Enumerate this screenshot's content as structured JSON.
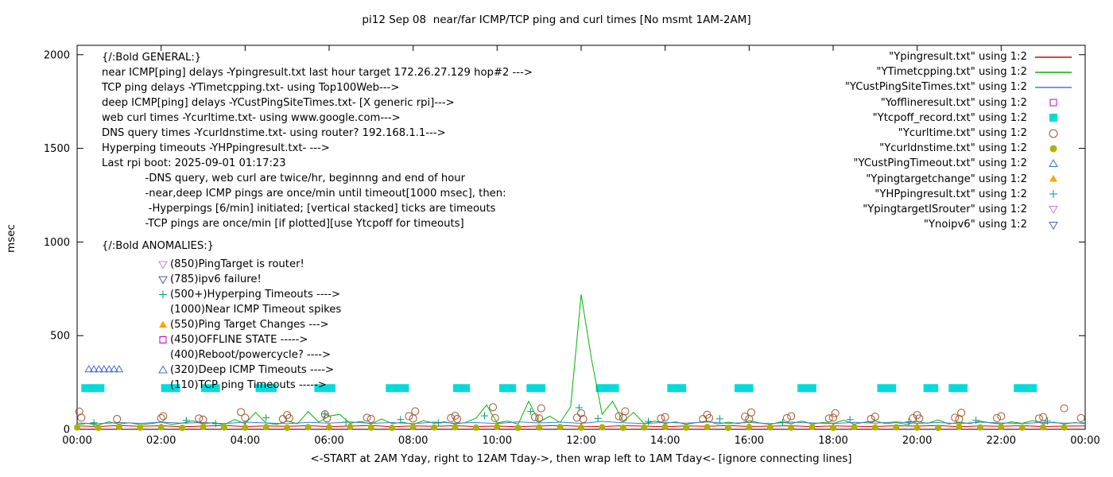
{
  "title": "pi12 Sep 08  near/far ICMP/TCP ping and curl times [No msmt 1AM-2AM]",
  "ylabel": "msec",
  "xlabel": "<-START at 2AM Yday, right to 12AM Tday->, then wrap left to 1AM Tday<- [ignore connecting lines]",
  "annotations": {
    "general": {
      "header": "{/:Bold GENERAL:}",
      "lines": [
        "near ICMP[ping] delays -Ypingresult.txt last hour target 172.26.27.129 hop#2 --->",
        "TCP ping delays -YTimetcpping.txt- using Top100Web--->",
        "deep ICMP[ping] delays -YCustPingSiteTimes.txt- [X generic rpi]--->",
        "web curl times -Ycurltime.txt- using www.google.com--->",
        "DNS query times -Ycurldnstime.txt- using router? 192.168.1.1--->",
        "Hyperping timeouts -YHPpingresult.txt- --->",
        "Last rpi boot: 2025-09-01 01:17:23",
        "             -DNS query, web curl are twice/hr, beginnng and end of hour",
        "             -near,deep ICMP pings are once/min until timeout[1000 msec], then:",
        "              -Hyperpings [6/min] initiated; [vertical stacked] ticks are timeouts",
        "             -TCP pings are once/min [if plotted][use Ytcpoff for timeouts]"
      ]
    },
    "anomalies": {
      "header": "{/:Bold ANOMALIES:}",
      "items": [
        {
          "marker": "triangle-down-open",
          "color": "#c080e0",
          "text": "(850)PingTarget is router!"
        },
        {
          "marker": "triangle-down-open",
          "color": "#4060c0",
          "text": "(785)ipv6 failure!"
        },
        {
          "marker": "plus",
          "color": "#009973",
          "text": "(500+)Hyperping Timeouts ---->"
        },
        {
          "marker": "none",
          "color": "",
          "text": "(1000)Near ICMP Timeout spikes"
        },
        {
          "marker": "triangle-up-filled",
          "color": "#ffa500",
          "text": "(550)Ping Target Changes --->"
        },
        {
          "marker": "square-open",
          "color": "#c000c0",
          "text": "(450)OFFLINE STATE ----->"
        },
        {
          "marker": "none",
          "color": "",
          "text": "(400)Reboot/powercycle? ---->"
        },
        {
          "marker": "triangle-up-open",
          "color": "#4169e1",
          "text": "(320)Deep ICMP Timeouts ---->"
        },
        {
          "marker": "none",
          "color": "",
          "text": "(110)TCP ping Timeouts ----->"
        }
      ]
    }
  },
  "chart_data": {
    "type": "line",
    "x_unit": "hours, 00:00 = 2AM yesterday",
    "x_range": [
      0,
      24
    ],
    "y_range": [
      0,
      2050
    ],
    "y_ticks": [
      0,
      500,
      1000,
      1500,
      2000
    ],
    "x_tick_hours": [
      0,
      2,
      4,
      6,
      8,
      10,
      12,
      14,
      16,
      18,
      20,
      22,
      24
    ],
    "x_tick_labels": [
      "00:00",
      "02:00",
      "04:00",
      "06:00",
      "08:00",
      "10:00",
      "12:00",
      "14:00",
      "16:00",
      "18:00",
      "20:00",
      "22:00",
      "00:00"
    ],
    "legend_position": "top-right",
    "series": [
      {
        "name": "Ypingresult.txt",
        "legend_label": "\"Ypingresult.txt\" using 1:2",
        "type": "line",
        "color": "#dd0000",
        "x_start": 0,
        "x_step": 0.5,
        "values": [
          18,
          15,
          20,
          16,
          19,
          14,
          17,
          20,
          15,
          18,
          16,
          19,
          15,
          17,
          20,
          14,
          18,
          16,
          19,
          15,
          17,
          14,
          18,
          20,
          16,
          15,
          19,
          17,
          14,
          18,
          16,
          20,
          15,
          17,
          19,
          14,
          18,
          16,
          15,
          19,
          17,
          20,
          14,
          18,
          16,
          19,
          15,
          17,
          18
        ]
      },
      {
        "name": "YTimetcpping.txt",
        "legend_label": "\"YTimetcpping.txt\" using 1:2",
        "type": "line",
        "color": "#00b400",
        "x_start": 0,
        "x_step": 0.25,
        "values": [
          25,
          32,
          22,
          40,
          28,
          35,
          24,
          30,
          38,
          26,
          33,
          45,
          28,
          36,
          24,
          52,
          30,
          90,
          34,
          26,
          44,
          30,
          95,
          38,
          70,
          80,
          32,
          42,
          28,
          55,
          30,
          38,
          26,
          46,
          32,
          40,
          28,
          36,
          60,
          130,
          34,
          44,
          28,
          150,
          40,
          70,
          36,
          120,
          720,
          370,
          80,
          150,
          42,
          90,
          30,
          44,
          32,
          40,
          26,
          36,
          44,
          28,
          38,
          30,
          46,
          34,
          26,
          40,
          30,
          44,
          28,
          36,
          32,
          48,
          28,
          38,
          44,
          30,
          36,
          26,
          42,
          32,
          50,
          28,
          38,
          30,
          44,
          34,
          28,
          40,
          32,
          46,
          30,
          38,
          28,
          36,
          30
        ]
      },
      {
        "name": "YCustPingSiteTimes.txt",
        "legend_label": "\"YCustPingSiteTimes.txt\" using 1:2",
        "type": "line",
        "color": "#3a80d2",
        "x_start": 0,
        "x_step": 0.5,
        "values": [
          34,
          30,
          36,
          32,
          38,
          33,
          36,
          31,
          38,
          34,
          30,
          37,
          33,
          39,
          32,
          36,
          30,
          38,
          33,
          36,
          31,
          40,
          34,
          38,
          32,
          42,
          35,
          31,
          37,
          33,
          39,
          32,
          36,
          30,
          38,
          34,
          31,
          37,
          33,
          39,
          32,
          36,
          30,
          38,
          34,
          31,
          37,
          33,
          35
        ]
      },
      {
        "name": "Yofflineresult.txt",
        "legend_label": "\"Yofflineresult.txt\" using 1:2",
        "type": "points",
        "marker": "square-open",
        "color": "#c000c0",
        "points": []
      },
      {
        "name": "Ytcpoff_record.txt",
        "legend_label": "\"Ytcpoff_record.txt\" using 1:2",
        "type": "bars",
        "color": "#00dcdc",
        "y": 220,
        "half_height": 21,
        "segments": [
          [
            0.1,
            0.65
          ],
          [
            2.0,
            2.45
          ],
          [
            2.95,
            3.4
          ],
          [
            4.25,
            4.75
          ],
          [
            5.65,
            6.15
          ],
          [
            7.35,
            7.9
          ],
          [
            8.95,
            9.35
          ],
          [
            10.05,
            10.45
          ],
          [
            10.7,
            11.15
          ],
          [
            12.35,
            12.9
          ],
          [
            14.05,
            14.5
          ],
          [
            15.65,
            16.1
          ],
          [
            17.15,
            17.6
          ],
          [
            19.05,
            19.5
          ],
          [
            20.15,
            20.5
          ],
          [
            20.75,
            21.2
          ],
          [
            22.3,
            22.85
          ]
        ]
      },
      {
        "name": "Ycurltime.txt",
        "legend_label": "\"Ycurltime.txt\" using 1:2",
        "type": "points",
        "marker": "circle-open",
        "color": "#a0522d",
        "points": [
          [
            0.05,
            95
          ],
          [
            0.1,
            62
          ],
          [
            0.95,
            55
          ],
          [
            2.0,
            60
          ],
          [
            2.05,
            70
          ],
          [
            2.9,
            58
          ],
          [
            3.0,
            52
          ],
          [
            3.9,
            92
          ],
          [
            4.0,
            62
          ],
          [
            4.9,
            55
          ],
          [
            5.0,
            76
          ],
          [
            5.05,
            60
          ],
          [
            5.9,
            80
          ],
          [
            5.95,
            58
          ],
          [
            6.9,
            62
          ],
          [
            7.0,
            55
          ],
          [
            7.9,
            70
          ],
          [
            8.0,
            58
          ],
          [
            8.05,
            96
          ],
          [
            8.9,
            60
          ],
          [
            9.0,
            72
          ],
          [
            9.05,
            55
          ],
          [
            9.9,
            118
          ],
          [
            9.95,
            60
          ],
          [
            10.9,
            65
          ],
          [
            11.0,
            58
          ],
          [
            11.05,
            112
          ],
          [
            11.9,
            62
          ],
          [
            12.0,
            86
          ],
          [
            12.05,
            55
          ],
          [
            12.9,
            70
          ],
          [
            13.0,
            60
          ],
          [
            13.05,
            96
          ],
          [
            13.9,
            58
          ],
          [
            14.0,
            65
          ],
          [
            14.9,
            55
          ],
          [
            15.0,
            78
          ],
          [
            15.05,
            60
          ],
          [
            15.9,
            68
          ],
          [
            16.0,
            55
          ],
          [
            16.05,
            90
          ],
          [
            16.9,
            60
          ],
          [
            17.0,
            70
          ],
          [
            17.9,
            58
          ],
          [
            18.0,
            62
          ],
          [
            18.05,
            86
          ],
          [
            18.9,
            55
          ],
          [
            19.0,
            68
          ],
          [
            19.9,
            60
          ],
          [
            20.0,
            76
          ],
          [
            20.05,
            58
          ],
          [
            20.9,
            62
          ],
          [
            21.0,
            55
          ],
          [
            21.05,
            88
          ],
          [
            21.9,
            60
          ],
          [
            22.0,
            70
          ],
          [
            22.9,
            58
          ],
          [
            23.0,
            65
          ],
          [
            23.5,
            112
          ],
          [
            23.9,
            60
          ]
        ]
      },
      {
        "name": "Ycurldnstime.txt",
        "legend_label": "\"Ycurldnstime.txt\" using 1:2",
        "type": "points",
        "marker": "circle-filled",
        "color": "#b0b000",
        "x_start": 0,
        "x_step": 0.5,
        "y_values": [
          10,
          8,
          12,
          9,
          11,
          8,
          13,
          10,
          9,
          12,
          8,
          11,
          10,
          13,
          9,
          8,
          12,
          10,
          11,
          9,
          13,
          8,
          10,
          12,
          9,
          11,
          8,
          10,
          13,
          9,
          12,
          8,
          11,
          10,
          9,
          13,
          8,
          12,
          10,
          11,
          9,
          8,
          13,
          10,
          12,
          9,
          11,
          10
        ]
      },
      {
        "name": "YCustPingTimeout.txt",
        "legend_label": "\"YCustPingTimeout.txt\" using 1:2",
        "type": "points",
        "marker": "triangle-up-open",
        "color": "#4169e1",
        "points": [
          [
            0.28,
            320
          ],
          [
            0.4,
            320
          ],
          [
            0.52,
            320
          ],
          [
            0.64,
            320
          ],
          [
            0.76,
            320
          ],
          [
            0.88,
            320
          ],
          [
            1.0,
            320
          ]
        ]
      },
      {
        "name": "Ypingtargetchange",
        "legend_label": "\"Ypingtargetchange\" using 1:2",
        "type": "points",
        "marker": "triangle-up-filled",
        "color": "#ffa500",
        "points": []
      },
      {
        "name": "YHPpingresult.txt",
        "legend_label": "\"YHPpingresult.txt\" using 1:2",
        "type": "points",
        "marker": "plus",
        "color": "#009973",
        "points": [
          [
            0.4,
            35
          ],
          [
            2.6,
            48
          ],
          [
            3.3,
            30
          ],
          [
            4.5,
            62
          ],
          [
            5.9,
            82
          ],
          [
            6.4,
            38
          ],
          [
            7.7,
            52
          ],
          [
            8.6,
            34
          ],
          [
            9.7,
            72
          ],
          [
            10.8,
            95
          ],
          [
            11.95,
            115
          ],
          [
            12.4,
            58
          ],
          [
            13.6,
            42
          ],
          [
            15.3,
            56
          ],
          [
            16.8,
            36
          ],
          [
            18.4,
            52
          ],
          [
            19.8,
            40
          ],
          [
            21.4,
            48
          ],
          [
            23.1,
            44
          ]
        ]
      },
      {
        "name": "YpingtargetISrouter",
        "legend_label": "\"YpingtargetISrouter\" using 1:2",
        "type": "points",
        "marker": "triangle-down-open",
        "color": "#c080e0",
        "points": []
      },
      {
        "name": "Ynoipv6",
        "legend_label": "\"Ynoipv6\" using 1:2",
        "type": "points",
        "marker": "triangle-down-open",
        "color": "#4060c0",
        "points": []
      }
    ]
  }
}
